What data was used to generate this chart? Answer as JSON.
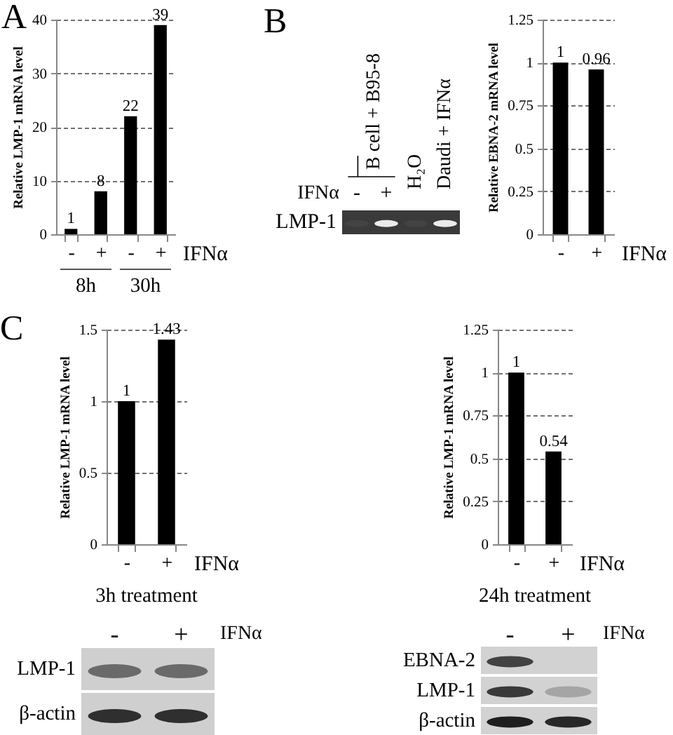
{
  "chart_data": [
    {
      "type": "bar",
      "title": "A",
      "categories": [
        "-",
        "+",
        "-",
        "+"
      ],
      "values": [
        1,
        8,
        22,
        39
      ],
      "color": "#000000",
      "ylabel": "Relative LMP-1 mRNA level",
      "xlabel": "IFNα",
      "ylim": [
        0,
        40
      ],
      "yticks": [
        0,
        10,
        20,
        30,
        40
      ],
      "grid": "y",
      "data_labels": true,
      "annotations": [
        "8h",
        "30h"
      ]
    },
    {
      "type": "other",
      "title": "B",
      "categories": [
        "-",
        "+",
        "H₂O",
        "Daudi + IFNα"
      ],
      "y_categories": [
        "LMP-1"
      ],
      "xlabel": "IFNα",
      "annotations": [
        "B cell + B95-8"
      ]
    },
    {
      "type": "bar",
      "categories": [
        "-",
        "+"
      ],
      "values": [
        1,
        0.96
      ],
      "color": "#000000",
      "ylabel": "Relative EBNA-2 mRNA level",
      "xlabel": "IFNα",
      "ylim": [
        0,
        1.25
      ],
      "yticks": [
        0,
        0.25,
        0.5,
        0.75,
        1,
        1.25
      ],
      "grid": "y",
      "data_labels": true
    },
    {
      "type": "bar",
      "title": "C",
      "categories": [
        "-",
        "+"
      ],
      "values": [
        1,
        1.43
      ],
      "color": "#000000",
      "ylabel": "Relative LMP-1 mRNA level",
      "xlabel": "IFNα",
      "ylim": [
        0,
        1.5
      ],
      "yticks": [
        0,
        0.5,
        1,
        1.5
      ],
      "grid": "y",
      "data_labels": true,
      "annotations": [
        "3h treatment"
      ]
    },
    {
      "type": "bar",
      "categories": [
        "-",
        "+"
      ],
      "values": [
        1,
        0.54
      ],
      "color": "#000000",
      "ylabel": "Relative LMP-1 mRNA level",
      "xlabel": "IFNα",
      "ylim": [
        0,
        1.25
      ],
      "yticks": [
        0,
        0.25,
        0.5,
        0.75,
        1,
        1.25
      ],
      "grid": "y",
      "data_labels": true,
      "annotations": [
        "24h treatment"
      ]
    },
    {
      "type": "other",
      "categories": [
        "-",
        "+"
      ],
      "y_categories": [
        "LMP-1",
        "β-actin"
      ],
      "xlabel": "IFNα"
    },
    {
      "type": "other",
      "categories": [
        "-",
        "+"
      ],
      "y_categories": [
        "EBNA-2",
        "LMP-1",
        "β-actin"
      ],
      "xlabel": "IFNα"
    }
  ]
}
